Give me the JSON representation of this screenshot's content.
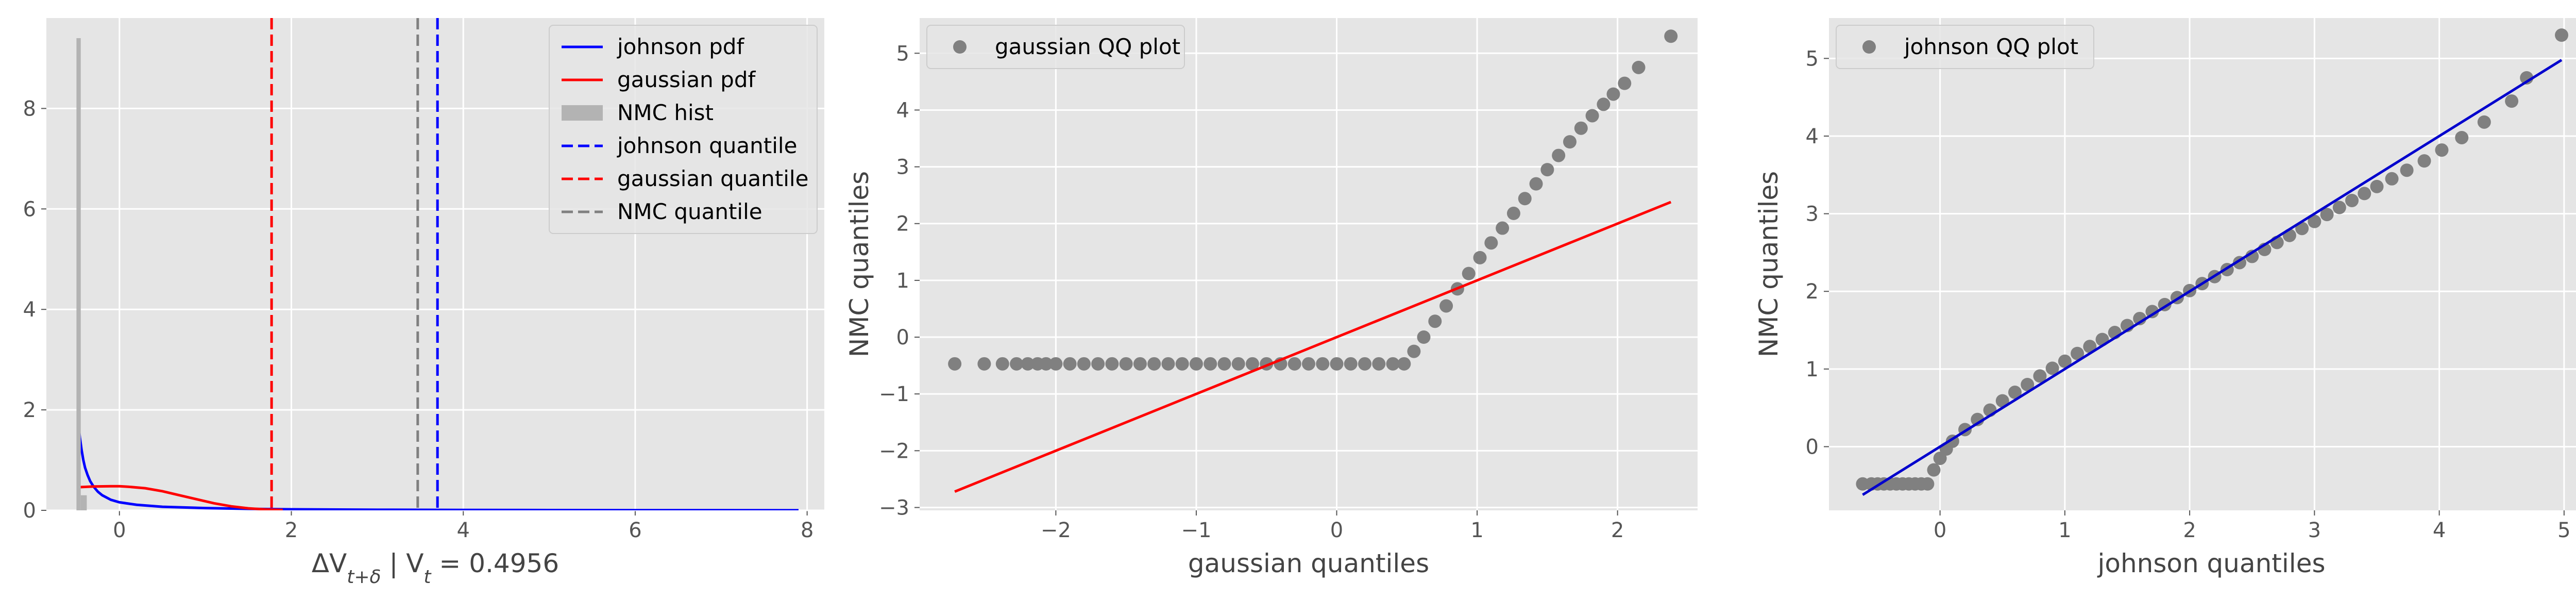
{
  "chart_data": [
    {
      "type": "line",
      "subtype": "density-with-histogram",
      "xlabel": "ΔV_{t+δ} | V_t = 0.4956",
      "ylabel": "",
      "xlim": [
        -0.85,
        8.2
      ],
      "ylim": [
        0,
        9.8
      ],
      "xticks": [
        0,
        2,
        4,
        6,
        8
      ],
      "yticks": [
        0,
        2,
        4,
        6,
        8
      ],
      "grid": true,
      "legend_position": "top-right",
      "colors": {
        "johnson": "#0000ff",
        "gaussian": "#ff0000",
        "nmc": "#b3b3b3",
        "nmc_quantile": "#808080"
      },
      "series": [
        {
          "name": "johnson pdf",
          "kind": "line",
          "color": "#0000ff",
          "x": [
            -0.48,
            -0.46,
            -0.44,
            -0.42,
            -0.4,
            -0.37,
            -0.34,
            -0.3,
            -0.25,
            -0.2,
            -0.1,
            0.0,
            0.2,
            0.5,
            1.0,
            1.5,
            2.0,
            3.0,
            4.0,
            5.0,
            6.0,
            7.0,
            7.9
          ],
          "y": [
            1.75,
            1.45,
            1.2,
            1.0,
            0.85,
            0.7,
            0.58,
            0.47,
            0.37,
            0.3,
            0.21,
            0.16,
            0.11,
            0.07,
            0.045,
            0.03,
            0.02,
            0.012,
            0.008,
            0.005,
            0.003,
            0.002,
            0.001
          ]
        },
        {
          "name": "gaussian pdf",
          "kind": "line",
          "color": "#ff0000",
          "x": [
            -0.48,
            -0.3,
            -0.1,
            0.0,
            0.1,
            0.3,
            0.5,
            0.7,
            0.9,
            1.1,
            1.3,
            1.5,
            1.7,
            1.9
          ],
          "y": [
            0.46,
            0.475,
            0.48,
            0.48,
            0.47,
            0.44,
            0.38,
            0.3,
            0.22,
            0.14,
            0.08,
            0.04,
            0.018,
            0.007
          ]
        },
        {
          "name": "NMC hist",
          "kind": "bar",
          "color": "#b3b3b3",
          "bins": [
            {
              "x0": -0.5,
              "x1": -0.45,
              "height": 9.4
            },
            {
              "x0": -0.45,
              "x1": -0.38,
              "height": 0.3
            }
          ]
        },
        {
          "name": "johnson quantile",
          "kind": "vline",
          "color": "#0000ff",
          "x": 3.7
        },
        {
          "name": "gaussian quantile",
          "kind": "vline",
          "color": "#ff0000",
          "x": 1.77
        },
        {
          "name": "NMC quantile",
          "kind": "vline",
          "color": "#808080",
          "x": 3.47
        }
      ],
      "legend": [
        "johnson pdf",
        "gaussian pdf",
        "NMC hist",
        "johnson quantile",
        "gaussian quantile",
        "NMC quantile"
      ]
    },
    {
      "type": "scatter",
      "subtype": "qq-plot",
      "xlabel": "gaussian quantiles",
      "ylabel": "NMC quantiles",
      "xlim": [
        -2.97,
        2.57
      ],
      "ylim": [
        -3.05,
        5.62
      ],
      "xticks": [
        -2,
        -1,
        0,
        1,
        2
      ],
      "yticks": [
        -3,
        -2,
        -1,
        0,
        1,
        2,
        3,
        4,
        5
      ],
      "grid": true,
      "legend_position": "top-left",
      "legend": [
        "gaussian QQ plot"
      ],
      "series": [
        {
          "name": "gaussian QQ plot",
          "kind": "points",
          "color": "#808080",
          "points": [
            [
              -2.72,
              -0.47
            ],
            [
              -2.51,
              -0.47
            ],
            [
              -2.38,
              -0.47
            ],
            [
              -2.28,
              -0.47
            ],
            [
              -2.2,
              -0.47
            ],
            [
              -2.13,
              -0.47
            ],
            [
              -2.07,
              -0.47
            ],
            [
              -2.0,
              -0.47
            ],
            [
              -1.9,
              -0.47
            ],
            [
              -1.8,
              -0.47
            ],
            [
              -1.7,
              -0.47
            ],
            [
              -1.6,
              -0.47
            ],
            [
              -1.5,
              -0.47
            ],
            [
              -1.4,
              -0.47
            ],
            [
              -1.3,
              -0.47
            ],
            [
              -1.2,
              -0.47
            ],
            [
              -1.1,
              -0.47
            ],
            [
              -1.0,
              -0.47
            ],
            [
              -0.9,
              -0.47
            ],
            [
              -0.8,
              -0.47
            ],
            [
              -0.7,
              -0.47
            ],
            [
              -0.6,
              -0.47
            ],
            [
              -0.5,
              -0.47
            ],
            [
              -0.4,
              -0.47
            ],
            [
              -0.3,
              -0.47
            ],
            [
              -0.2,
              -0.47
            ],
            [
              -0.1,
              -0.47
            ],
            [
              0.0,
              -0.47
            ],
            [
              0.1,
              -0.47
            ],
            [
              0.2,
              -0.47
            ],
            [
              0.3,
              -0.47
            ],
            [
              0.4,
              -0.47
            ],
            [
              0.48,
              -0.47
            ],
            [
              0.55,
              -0.25
            ],
            [
              0.62,
              0.0
            ],
            [
              0.7,
              0.28
            ],
            [
              0.78,
              0.55
            ],
            [
              0.86,
              0.85
            ],
            [
              0.94,
              1.12
            ],
            [
              1.02,
              1.4
            ],
            [
              1.1,
              1.66
            ],
            [
              1.18,
              1.92
            ],
            [
              1.26,
              2.18
            ],
            [
              1.34,
              2.44
            ],
            [
              1.42,
              2.7
            ],
            [
              1.5,
              2.95
            ],
            [
              1.58,
              3.2
            ],
            [
              1.66,
              3.44
            ],
            [
              1.74,
              3.68
            ],
            [
              1.82,
              3.9
            ],
            [
              1.9,
              4.1
            ],
            [
              1.97,
              4.28
            ],
            [
              2.05,
              4.47
            ],
            [
              2.15,
              4.75
            ],
            [
              2.38,
              5.3
            ]
          ]
        },
        {
          "name": "reference line",
          "kind": "line",
          "color": "#ff0000",
          "x": [
            -2.72,
            2.38
          ],
          "y": [
            -2.72,
            2.38
          ]
        }
      ]
    },
    {
      "type": "scatter",
      "subtype": "qq-plot",
      "xlabel": "johnson quantiles",
      "ylabel": "NMC quantiles",
      "xlim": [
        -0.89,
        5.24
      ],
      "ylim": [
        -0.82,
        5.52
      ],
      "xticks": [
        0,
        1,
        2,
        3,
        4,
        5
      ],
      "yticks": [
        0,
        1,
        2,
        3,
        4,
        5
      ],
      "grid": true,
      "legend_position": "top-left",
      "legend": [
        "johnson QQ plot"
      ],
      "series": [
        {
          "name": "johnson QQ plot",
          "kind": "points",
          "color": "#808080",
          "points": [
            [
              -0.62,
              -0.48
            ],
            [
              -0.55,
              -0.48
            ],
            [
              -0.5,
              -0.48
            ],
            [
              -0.45,
              -0.48
            ],
            [
              -0.4,
              -0.48
            ],
            [
              -0.35,
              -0.48
            ],
            [
              -0.3,
              -0.48
            ],
            [
              -0.25,
              -0.48
            ],
            [
              -0.2,
              -0.48
            ],
            [
              -0.15,
              -0.48
            ],
            [
              -0.1,
              -0.48
            ],
            [
              -0.05,
              -0.3
            ],
            [
              0.0,
              -0.15
            ],
            [
              0.05,
              -0.03
            ],
            [
              0.1,
              0.07
            ],
            [
              0.2,
              0.22
            ],
            [
              0.3,
              0.35
            ],
            [
              0.4,
              0.47
            ],
            [
              0.5,
              0.59
            ],
            [
              0.6,
              0.7
            ],
            [
              0.7,
              0.8
            ],
            [
              0.8,
              0.91
            ],
            [
              0.9,
              1.01
            ],
            [
              1.0,
              1.1
            ],
            [
              1.1,
              1.2
            ],
            [
              1.2,
              1.29
            ],
            [
              1.3,
              1.38
            ],
            [
              1.4,
              1.47
            ],
            [
              1.5,
              1.56
            ],
            [
              1.6,
              1.65
            ],
            [
              1.7,
              1.74
            ],
            [
              1.8,
              1.83
            ],
            [
              1.9,
              1.92
            ],
            [
              2.0,
              2.01
            ],
            [
              2.1,
              2.1
            ],
            [
              2.2,
              2.19
            ],
            [
              2.3,
              2.28
            ],
            [
              2.4,
              2.37
            ],
            [
              2.5,
              2.45
            ],
            [
              2.6,
              2.54
            ],
            [
              2.7,
              2.63
            ],
            [
              2.8,
              2.72
            ],
            [
              2.9,
              2.81
            ],
            [
              3.0,
              2.9
            ],
            [
              3.1,
              2.99
            ],
            [
              3.2,
              3.08
            ],
            [
              3.3,
              3.17
            ],
            [
              3.4,
              3.26
            ],
            [
              3.5,
              3.35
            ],
            [
              3.62,
              3.45
            ],
            [
              3.74,
              3.56
            ],
            [
              3.88,
              3.68
            ],
            [
              4.02,
              3.82
            ],
            [
              4.18,
              3.98
            ],
            [
              4.36,
              4.18
            ],
            [
              4.58,
              4.45
            ],
            [
              4.7,
              4.75
            ],
            [
              4.98,
              5.3
            ]
          ]
        },
        {
          "name": "reference line",
          "kind": "line",
          "color": "#0000cd",
          "x": [
            -0.62,
            4.98
          ],
          "y": [
            -0.62,
            4.98
          ]
        }
      ]
    }
  ]
}
